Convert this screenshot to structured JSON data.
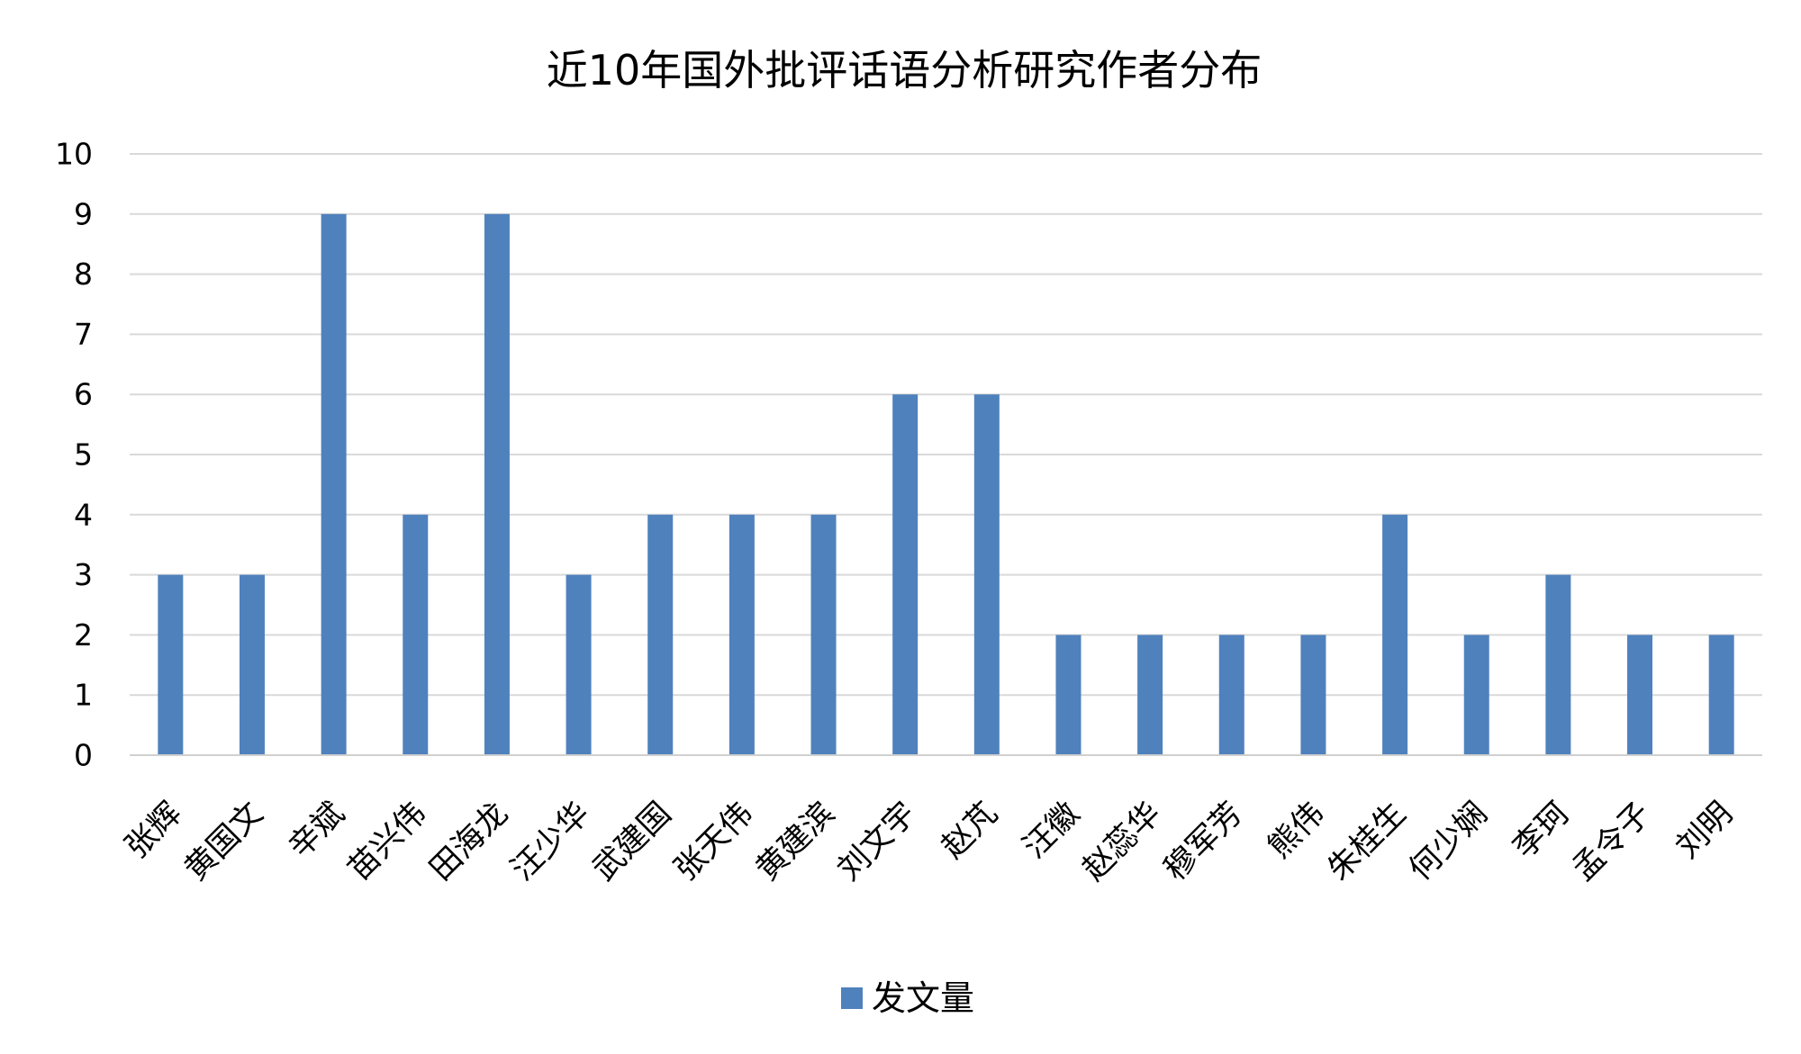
{
  "chart_data": {
    "type": "bar",
    "title": "近10年国外批评话语分析研究作者分布",
    "categories": [
      "张辉",
      "黄国文",
      "辛斌",
      "苗兴伟",
      "田海龙",
      "汪少华",
      "武建国",
      "张天伟",
      "黄建滨",
      "刘文宇",
      "赵芃",
      "汪徽",
      "赵蕊华",
      "穆军芳",
      "熊伟",
      "朱桂生",
      "何少娴",
      "李珂",
      "孟令子",
      "刘明"
    ],
    "series": [
      {
        "name": "发文量",
        "values": [
          3,
          3,
          9,
          4,
          9,
          3,
          4,
          4,
          4,
          6,
          6,
          2,
          2,
          2,
          2,
          4,
          2,
          3,
          2,
          2
        ]
      }
    ],
    "xlabel": "",
    "ylabel": "",
    "ylim": [
      0,
      10
    ],
    "yticks": [
      0,
      1,
      2,
      3,
      4,
      5,
      6,
      7,
      8,
      9,
      10
    ],
    "grid": true,
    "legend": "bottom-center",
    "colors": {
      "series": "#4F81BD",
      "grid": "#D9D9D9",
      "axis": "#D0D0D0"
    }
  }
}
